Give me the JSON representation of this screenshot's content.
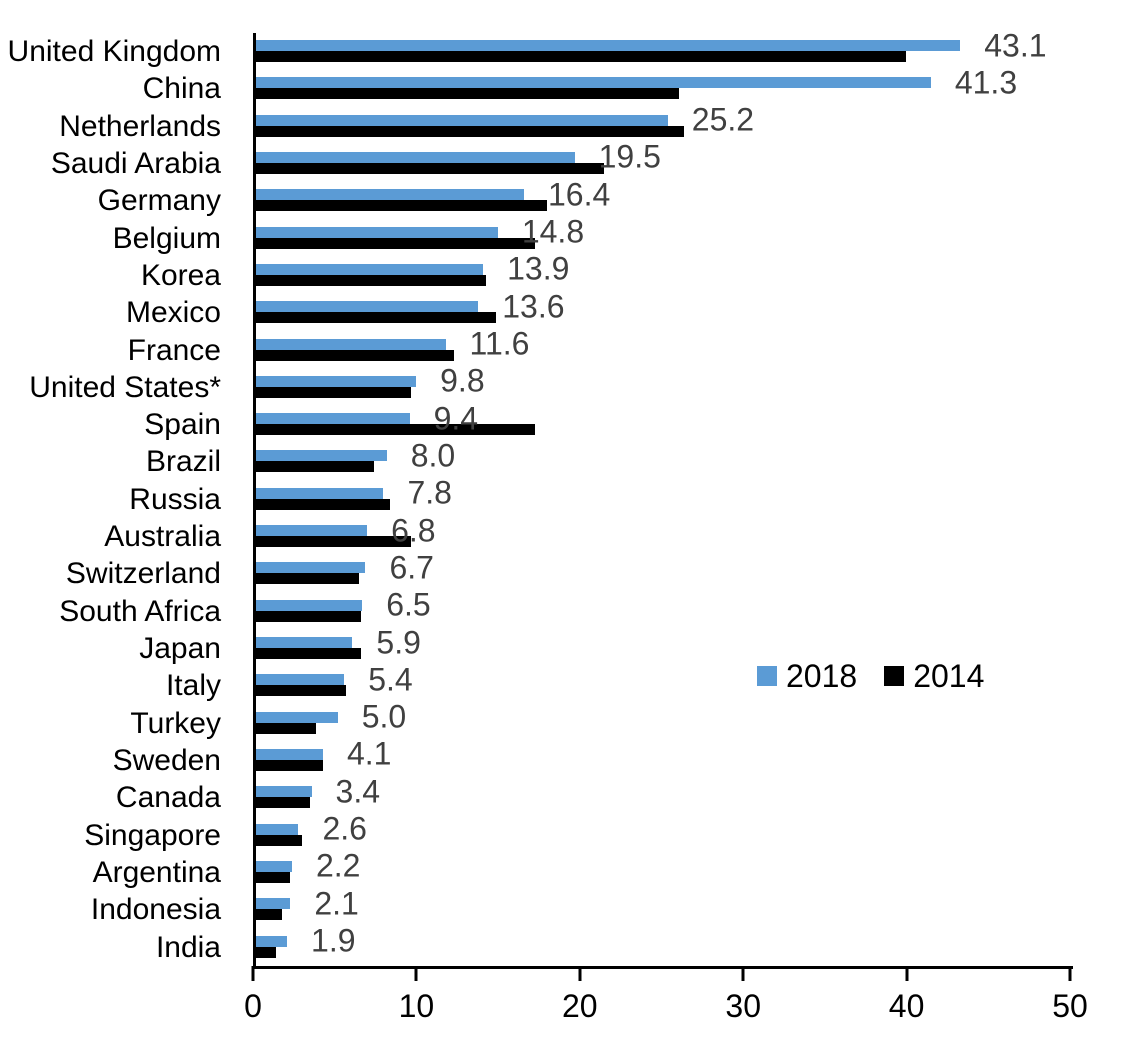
{
  "chart_data": {
    "type": "bar",
    "orientation": "horizontal",
    "title": "",
    "xlabel": "",
    "ylabel": "",
    "xlim": [
      0,
      50
    ],
    "x_ticks": [
      "0",
      "10",
      "20",
      "30",
      "40",
      "50"
    ],
    "grid": false,
    "categories": [
      "United Kingdom",
      "China",
      "Netherlands",
      "Saudi Arabia",
      "Germany",
      "Belgium",
      "Korea",
      "Mexico",
      "France",
      "United States*",
      "Spain",
      "Brazil",
      "Russia",
      "Australia",
      "Switzerland",
      "South Africa",
      "Japan",
      "Italy",
      "Turkey",
      "Sweden",
      "Canada",
      "Singapore",
      "Argentina",
      "Indonesia",
      "India"
    ],
    "series": [
      {
        "name": "2018",
        "color": "#5B9BD5",
        "values": [
          43.1,
          41.3,
          25.2,
          19.5,
          16.4,
          14.8,
          13.9,
          13.6,
          11.6,
          9.8,
          9.4,
          8.0,
          7.8,
          6.8,
          6.7,
          6.5,
          5.9,
          5.4,
          5.0,
          4.1,
          3.4,
          2.6,
          2.2,
          2.1,
          1.9
        ],
        "data_labels": [
          "43.1",
          "41.3",
          "25.2",
          "19.5",
          "16.4",
          "14.8",
          "13.9",
          "13.6",
          "11.6",
          "9.8",
          "9.4",
          "8.0",
          "7.8",
          "6.8",
          "6.7",
          "6.5",
          "5.9",
          "5.4",
          "5.0",
          "4.1",
          "3.4",
          "2.6",
          "2.2",
          "2.1",
          "1.9"
        ]
      },
      {
        "name": "2014",
        "color": "#000000",
        "values": [
          39.8,
          25.9,
          26.2,
          21.3,
          17.8,
          17.1,
          14.1,
          14.7,
          12.1,
          9.5,
          17.1,
          7.2,
          8.2,
          9.5,
          6.3,
          6.4,
          6.4,
          5.5,
          3.7,
          4.1,
          3.3,
          2.8,
          2.1,
          1.6,
          1.2
        ],
        "data_labels": []
      }
    ],
    "legend": {
      "position": "middle-right",
      "entries": [
        {
          "label": "2018",
          "color": "#5B9BD5"
        },
        {
          "label": "2014",
          "color": "#000000"
        }
      ]
    },
    "value_label_color": "#404040",
    "axis_color": "#000000",
    "background_color": "#FFFFFF"
  }
}
